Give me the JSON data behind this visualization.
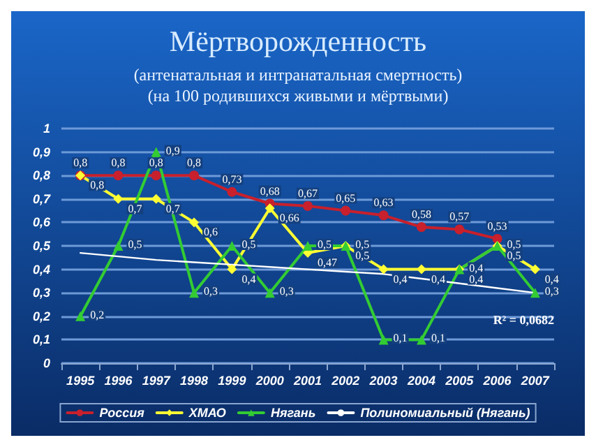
{
  "chart_data": {
    "type": "line",
    "title": "Мёртворожденность",
    "subtitle": "(антенатальная и интранатальная смертность)\n(на 100 родившихся живыми и мёртвыми)",
    "categories": [
      "1995",
      "1996",
      "1997",
      "1998",
      "1999",
      "2000",
      "2001",
      "2002",
      "2003",
      "2004",
      "2005",
      "2006",
      "2007"
    ],
    "series": [
      {
        "name": "Россия",
        "color": "#c8202c",
        "marker": "circle",
        "values": [
          0.8,
          0.8,
          0.8,
          0.8,
          0.73,
          0.68,
          0.67,
          0.65,
          0.63,
          0.58,
          0.57,
          0.53,
          null
        ],
        "value_labels": [
          "0,8",
          "0,8",
          "0,8",
          "0,8",
          "0,73",
          "0,68",
          "0,67",
          "0,65",
          "0,63",
          "0,58",
          "0,57",
          "0,53",
          null
        ]
      },
      {
        "name": "ХМАО",
        "color": "#ffff33",
        "marker": "diamond",
        "values": [
          0.8,
          0.7,
          0.7,
          0.6,
          0.4,
          0.66,
          0.47,
          0.5,
          0.4,
          0.4,
          0.4,
          0.5,
          0.4
        ],
        "value_labels": [
          "0,8",
          "0,7",
          "0,7",
          "0,6",
          "0,4",
          "0,66",
          "0,47",
          "0,5",
          "0,4",
          "0,4",
          "0,4",
          "0,5",
          "0,4"
        ]
      },
      {
        "name": "Нягань",
        "color": "#33cc33",
        "marker": "triangle",
        "values": [
          0.2,
          0.5,
          0.9,
          0.3,
          0.5,
          0.3,
          0.5,
          0.5,
          0.1,
          0.1,
          0.4,
          0.5,
          0.3
        ],
        "value_labels": [
          "0,2",
          "0,5",
          "0,9",
          "0,3",
          "0,5",
          "0,3",
          "0,5",
          "0,5",
          "0,1",
          "0,1",
          "0,4",
          "0,5",
          "0,3"
        ]
      },
      {
        "name": "Полиномиальный (Нягань)",
        "color": "#ffffff",
        "marker": "none",
        "values": [
          0.47,
          0.455,
          0.44,
          0.43,
          0.42,
          0.41,
          0.4,
          0.39,
          0.38,
          0.36,
          0.34,
          0.32,
          0.3
        ]
      }
    ],
    "annotations": [
      "R² = 0,0682"
    ],
    "ylim": [
      0,
      1
    ],
    "yticks": [
      0,
      {
        "value": 0.1,
        "label": "0,1"
      },
      {
        "value": 0.2,
        "label": "0,2"
      },
      {
        "value": 0.3,
        "label": "0,3"
      },
      {
        "value": 0.4,
        "label": "0,4"
      },
      {
        "value": 0.5,
        "label": "0,5"
      },
      {
        "value": 0.6,
        "label": "0,6"
      },
      {
        "value": 0.7,
        "label": "0,7"
      },
      {
        "value": 0.8,
        "label": "0,8"
      },
      {
        "value": 0.9,
        "label": "0,9"
      },
      1
    ],
    "grid": "y",
    "legend": "bottom"
  }
}
